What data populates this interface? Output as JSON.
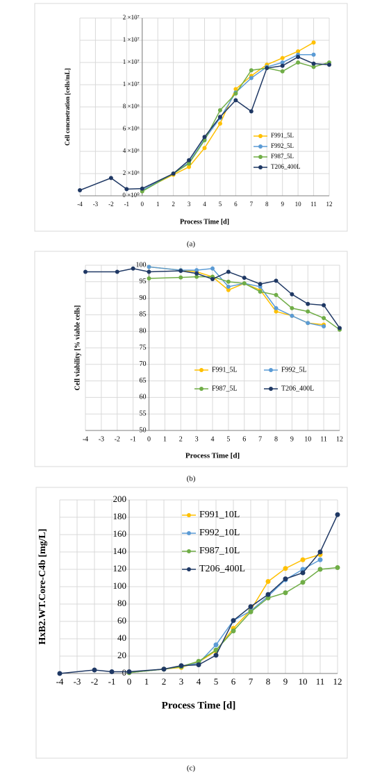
{
  "chart_data": [
    {
      "type": "line",
      "panel_label": "(a)",
      "xlabel": "Process Time [d]",
      "ylabel": "Cell concnetration  [cells/mL]",
      "x": [
        -4,
        -2,
        -1,
        0,
        2,
        3,
        4,
        5,
        6,
        7,
        8,
        9,
        10,
        11,
        12
      ],
      "xlim": [
        -4,
        12
      ],
      "xticks": [
        -4,
        -3,
        -2,
        -1,
        0,
        1,
        2,
        3,
        4,
        5,
        6,
        7,
        8,
        9,
        10,
        11,
        12
      ],
      "ylim": [
        0,
        16000000
      ],
      "yticks": [
        {
          "value": 0,
          "label": "0 ×10⁰"
        },
        {
          "value": 2000000,
          "label": "2 ×10⁶"
        },
        {
          "value": 4000000,
          "label": "4 ×10⁶"
        },
        {
          "value": 6000000,
          "label": "6 ×10⁶"
        },
        {
          "value": 8000000,
          "label": "8 ×10⁶"
        },
        {
          "value": 10000000,
          "label": "1 ×10⁷"
        },
        {
          "value": 12000000,
          "label": "1 ×10⁷"
        },
        {
          "value": 14000000,
          "label": "1 ×10⁷"
        },
        {
          "value": 16000000,
          "label": "2 ×10⁷"
        }
      ],
      "grid": true,
      "series": [
        {
          "name": "F991_5L",
          "color": "#ffc000",
          "values": [
            null,
            null,
            null,
            500000,
            1900000,
            2600000,
            4300000,
            6500000,
            9600000,
            10800000,
            11800000,
            12400000,
            13000000,
            13800000,
            null
          ]
        },
        {
          "name": "F992_5L",
          "color": "#5b9bd5",
          "values": [
            null,
            null,
            null,
            500000,
            2000000,
            3000000,
            5100000,
            7000000,
            9300000,
            10600000,
            11600000,
            12000000,
            12700000,
            12700000,
            null
          ]
        },
        {
          "name": "F987_5L",
          "color": "#70ad47",
          "values": [
            null,
            null,
            null,
            400000,
            2000000,
            2900000,
            5000000,
            7700000,
            9200000,
            11300000,
            11500000,
            11200000,
            12000000,
            11600000,
            12000000
          ]
        },
        {
          "name": "T206_400L",
          "color": "#1f3864",
          "values": [
            500000,
            1600000,
            600000,
            650000,
            2000000,
            3200000,
            5300000,
            7100000,
            8600000,
            7600000,
            11500000,
            11700000,
            12500000,
            11900000,
            11800000
          ]
        }
      ]
    },
    {
      "type": "line",
      "panel_label": "(b)",
      "xlabel": "Process Time [d]",
      "ylabel": "Cell viability  [% viable cells]",
      "x": [
        -4,
        -2,
        -1,
        0,
        2,
        3,
        4,
        5,
        6,
        7,
        8,
        9,
        10,
        11,
        12
      ],
      "xlim": [
        -4,
        12
      ],
      "xticks": [
        -4,
        -3,
        -2,
        -1,
        0,
        1,
        2,
        3,
        4,
        5,
        6,
        7,
        8,
        9,
        10,
        11,
        12
      ],
      "ylim": [
        50,
        100
      ],
      "yticks": [
        50,
        55,
        60,
        65,
        70,
        75,
        80,
        85,
        90,
        95,
        100
      ],
      "grid": true,
      "series": [
        {
          "name": "F991_5L",
          "color": "#ffc000",
          "values": [
            null,
            null,
            null,
            99.5,
            98.5,
            98,
            96.5,
            92.5,
            94.5,
            92.5,
            86,
            84.7,
            82.5,
            82,
            null
          ]
        },
        {
          "name": "F992_5L",
          "color": "#5b9bd5",
          "values": [
            null,
            null,
            null,
            99.5,
            98.5,
            98.5,
            99,
            93.5,
            94.5,
            93.5,
            87,
            84.7,
            82.5,
            81.5,
            null
          ]
        },
        {
          "name": "F987_5L",
          "color": "#70ad47",
          "values": [
            null,
            null,
            null,
            96,
            96.3,
            96.5,
            96.5,
            95,
            94.5,
            92,
            91,
            87,
            86,
            84,
            80.5
          ]
        },
        {
          "name": "T206_400L",
          "color": "#1f3864",
          "values": [
            98,
            98,
            99,
            98,
            98.3,
            97.5,
            95.8,
            98,
            96.2,
            94.3,
            95.3,
            91.2,
            88.3,
            87.9,
            81
          ]
        }
      ]
    },
    {
      "type": "line",
      "panel_label": "(c)",
      "xlabel": "Process Time [d]",
      "ylabel": "HxB2.WT.Core-C4b  [mg/L]",
      "x": [
        -4,
        -2,
        -1,
        0,
        2,
        3,
        4,
        5,
        6,
        7,
        8,
        9,
        10,
        11,
        12
      ],
      "xlim": [
        -4,
        12
      ],
      "xticks": [
        -4,
        -3,
        -2,
        -1,
        0,
        1,
        2,
        3,
        4,
        5,
        6,
        7,
        8,
        9,
        10,
        11,
        12
      ],
      "ylim": [
        0,
        200
      ],
      "yticks": [
        0,
        20,
        40,
        60,
        80,
        100,
        120,
        140,
        160,
        180,
        200
      ],
      "grid": true,
      "series": [
        {
          "name": "F991_10L",
          "color": "#ffc000",
          "values": [
            null,
            null,
            null,
            1,
            5,
            7,
            13,
            26,
            52,
            73,
            106,
            121,
            131,
            137,
            null
          ]
        },
        {
          "name": "F992_10L",
          "color": "#5b9bd5",
          "values": [
            null,
            null,
            null,
            1,
            5,
            8,
            12,
            33,
            61,
            72,
            89,
            108,
            120,
            131,
            null
          ]
        },
        {
          "name": "F987_10L",
          "color": "#70ad47",
          "values": [
            null,
            null,
            null,
            1,
            5,
            8,
            14,
            27,
            49,
            71,
            87,
            93,
            105,
            120,
            122
          ]
        },
        {
          "name": "T206_400L",
          "color": "#1f3864",
          "values": [
            0,
            4,
            2,
            2,
            5,
            9,
            10,
            21,
            61,
            77,
            91,
            109,
            116,
            140,
            183
          ]
        }
      ]
    }
  ]
}
